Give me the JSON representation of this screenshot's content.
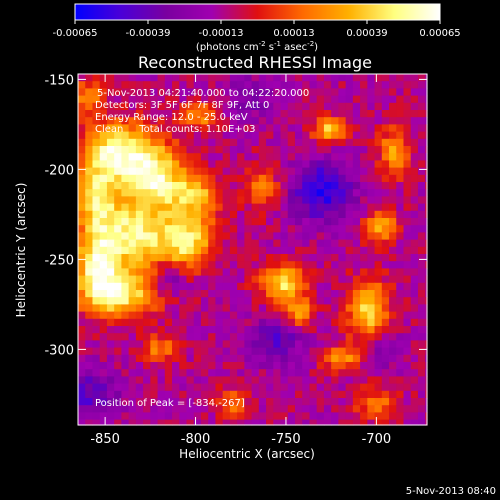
{
  "chart_data": {
    "type": "heatmap",
    "title": "Reconstructed RHESSI Image",
    "xlabel": "Heliocentric X (arcsec)",
    "ylabel": "Heliocentric Y (arcsec)",
    "xlim": [
      -865,
      -672
    ],
    "ylim": [
      -342,
      -147
    ],
    "xticks": [
      -850,
      -800,
      -750,
      -700
    ],
    "yticks": [
      -300,
      -250,
      -200,
      -150
    ],
    "xtick_labels": [
      "-850",
      "-800",
      "-750",
      "-700"
    ],
    "ytick_labels": [
      "-300",
      "-250",
      "-200",
      "-150"
    ],
    "colorbar": {
      "range": [
        -0.00065,
        0.00065
      ],
      "ticks": [
        -0.00065,
        -0.00039,
        -0.00013,
        0.00013,
        0.00039,
        0.00065
      ],
      "tick_labels": [
        "-0.00065",
        "-0.00039",
        "-0.00013",
        "0.00013",
        "0.00039",
        "0.00065"
      ],
      "units_prefix": "(photons cm",
      "units_exp1": "-2",
      "units_mid": " s",
      "units_exp2": "-1",
      "units_mid2": " asec",
      "units_exp3": "-2",
      "units_suffix": ")",
      "colormap": [
        "#0000ff",
        "#4a00d8",
        "#7a00a0",
        "#a000b0",
        "#e01010",
        "#ff6a00",
        "#ffb000",
        "#ffff80",
        "#ffffff"
      ]
    },
    "annotations": [
      "5-Nov-2013 04:21:40.000 to 04:22:20.000",
      "Detectors: 3F 5F 6F 7F 8F 9F, Att 0",
      "Energy Range: 12.0 - 25.0 keV",
      "Clean     Total counts: 1.10E+03"
    ],
    "peak_label": "Position of Peak = [-834,-267]",
    "peak": [
      -834,
      -267
    ],
    "grid": false,
    "sources": [
      {
        "x": -842,
        "y": -190,
        "sx": 14,
        "sy": 11,
        "amp": 0.00065
      },
      {
        "x": -822,
        "y": -205,
        "sx": 12,
        "sy": 12,
        "amp": 0.0006
      },
      {
        "x": -835,
        "y": -237,
        "sx": 16,
        "sy": 14,
        "amp": 0.00062
      },
      {
        "x": -855,
        "y": -215,
        "sx": 8,
        "sy": 14,
        "amp": 0.0005
      },
      {
        "x": -804,
        "y": -240,
        "sx": 10,
        "sy": 10,
        "amp": 0.00055
      },
      {
        "x": -842,
        "y": -270,
        "sx": 14,
        "sy": 9,
        "amp": 0.0006
      },
      {
        "x": -855,
        "y": -255,
        "sx": 8,
        "sy": 12,
        "amp": 0.00055
      },
      {
        "x": -800,
        "y": -215,
        "sx": 9,
        "sy": 8,
        "amp": 0.00045
      },
      {
        "x": -752,
        "y": -263,
        "sx": 9,
        "sy": 7,
        "amp": 0.00055
      },
      {
        "x": -743,
        "y": -280,
        "sx": 6,
        "sy": 6,
        "amp": 0.0004
      },
      {
        "x": -704,
        "y": -278,
        "sx": 8,
        "sy": 12,
        "amp": 0.00052
      },
      {
        "x": -698,
        "y": -232,
        "sx": 7,
        "sy": 6,
        "amp": 0.0004
      },
      {
        "x": -725,
        "y": -178,
        "sx": 7,
        "sy": 5,
        "amp": 0.0005
      },
      {
        "x": -690,
        "y": -190,
        "sx": 6,
        "sy": 10,
        "amp": 0.00038
      },
      {
        "x": -763,
        "y": -210,
        "sx": 7,
        "sy": 9,
        "amp": 0.0003
      },
      {
        "x": -720,
        "y": -305,
        "sx": 7,
        "sy": 5,
        "amp": 0.0004
      },
      {
        "x": -820,
        "y": -300,
        "sx": 7,
        "sy": 6,
        "amp": 0.0003
      },
      {
        "x": -797,
        "y": -170,
        "sx": 8,
        "sy": 5,
        "amp": 0.00035
      },
      {
        "x": -860,
        "y": -160,
        "sx": 7,
        "sy": 7,
        "amp": 0.00035
      },
      {
        "x": -780,
        "y": -330,
        "sx": 6,
        "sy": 6,
        "amp": 0.0003
      },
      {
        "x": -700,
        "y": -330,
        "sx": 9,
        "sy": 6,
        "amp": 0.0003
      },
      {
        "x": -730,
        "y": -212,
        "sx": 12,
        "sy": 12,
        "amp": -0.00045
      },
      {
        "x": -755,
        "y": -295,
        "sx": 10,
        "sy": 9,
        "amp": -0.0003
      },
      {
        "x": -815,
        "y": -260,
        "sx": 6,
        "sy": 6,
        "amp": -0.00028
      },
      {
        "x": -860,
        "y": -325,
        "sx": 12,
        "sy": 10,
        "amp": -0.0003
      },
      {
        "x": -770,
        "y": -160,
        "sx": 10,
        "sy": 8,
        "amp": -0.0002
      },
      {
        "x": -695,
        "y": -300,
        "sx": 7,
        "sy": 7,
        "amp": -0.0002
      }
    ]
  },
  "footer": {
    "timestamp": "5-Nov-2013 08:40"
  }
}
